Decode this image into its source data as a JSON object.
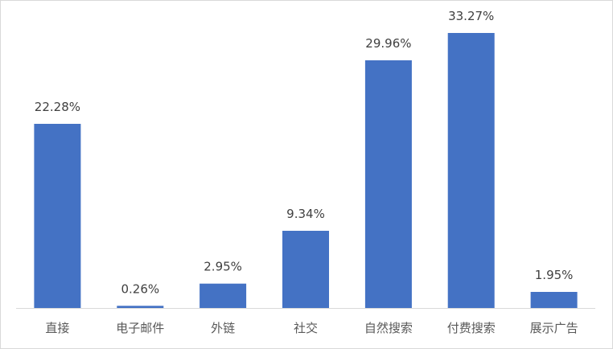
{
  "chart_data": {
    "type": "bar",
    "categories": [
      "直接",
      "电子邮件",
      "外链",
      "社交",
      "自然搜索",
      "付费搜索",
      "展示广告"
    ],
    "values": [
      22.28,
      0.26,
      2.95,
      9.34,
      29.96,
      33.27,
      1.95
    ],
    "data_labels": [
      "22.28%",
      "0.26%",
      "2.95%",
      "9.34%",
      "29.96%",
      "33.27%",
      "1.95%"
    ],
    "unit": "%",
    "title": "",
    "xlabel": "",
    "ylabel": "",
    "ylim": [
      0,
      33.27
    ],
    "grid": false,
    "legend": "none",
    "colors": {
      "bar": "#4472C4",
      "axis": "#d9d9d9",
      "label": "#404040"
    }
  }
}
